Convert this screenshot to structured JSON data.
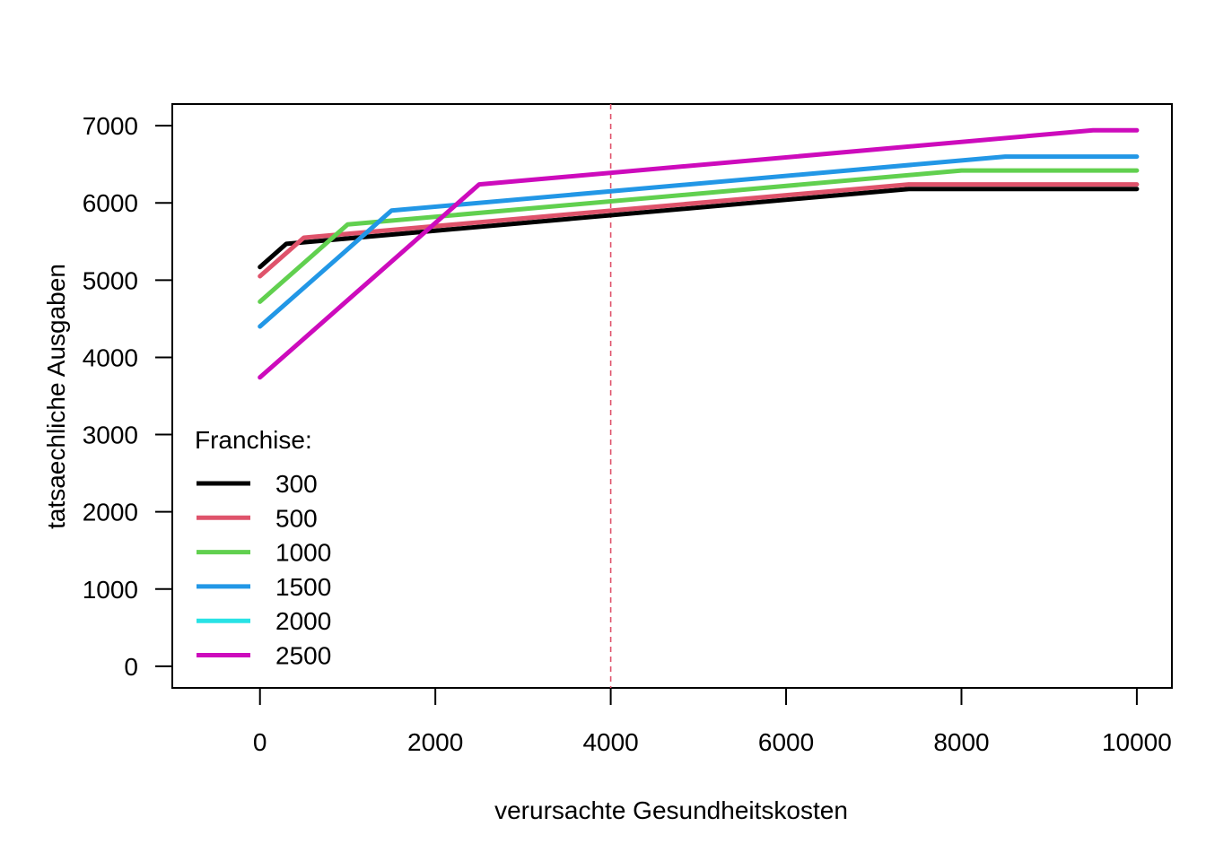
{
  "chart_data": {
    "type": "line",
    "title": "",
    "xlabel": "verursachte Gesundheitskosten",
    "ylabel": "tatsaechliche Ausgaben",
    "xlim": [
      -1000,
      10400
    ],
    "ylim": [
      -280,
      7280
    ],
    "x_ticks": [
      0,
      2000,
      4000,
      6000,
      8000,
      10000
    ],
    "y_ticks": [
      0,
      1000,
      2000,
      3000,
      4000,
      5000,
      6000,
      7000
    ],
    "x_tick_labels": [
      "0",
      "2000",
      "4000",
      "6000",
      "8000",
      "10000"
    ],
    "y_tick_labels": [
      "0",
      "1000",
      "2000",
      "3000",
      "4000",
      "5000",
      "6000",
      "7000"
    ],
    "grid": false,
    "legend_position": "bottom-left",
    "legend_title": "Franchise:",
    "vline": {
      "x": 4000,
      "color": "#DF536B",
      "style": "dashed"
    },
    "series": [
      {
        "name": "300",
        "color": "#000000",
        "x": [
          0,
          300,
          7400,
          10000
        ],
        "y": [
          5170,
          5470,
          6180,
          6180
        ]
      },
      {
        "name": "500",
        "color": "#DF536B",
        "x": [
          0,
          500,
          7400,
          10000
        ],
        "y": [
          5050,
          5550,
          6240,
          6240
        ]
      },
      {
        "name": "1000",
        "color": "#61D04F",
        "x": [
          0,
          1000,
          8000,
          10000
        ],
        "y": [
          4720,
          5720,
          6420,
          6420
        ]
      },
      {
        "name": "1500",
        "color": "#2297E6",
        "x": [
          0,
          1500,
          8500,
          10000
        ],
        "y": [
          4400,
          5900,
          6600,
          6600
        ]
      },
      {
        "name": "2000",
        "color": "#28E2E5",
        "x": [],
        "y": []
      },
      {
        "name": "2500",
        "color": "#CD0BBC",
        "x": [
          0,
          2500,
          9500,
          10000
        ],
        "y": [
          3740,
          6240,
          6940,
          6940
        ]
      }
    ]
  }
}
